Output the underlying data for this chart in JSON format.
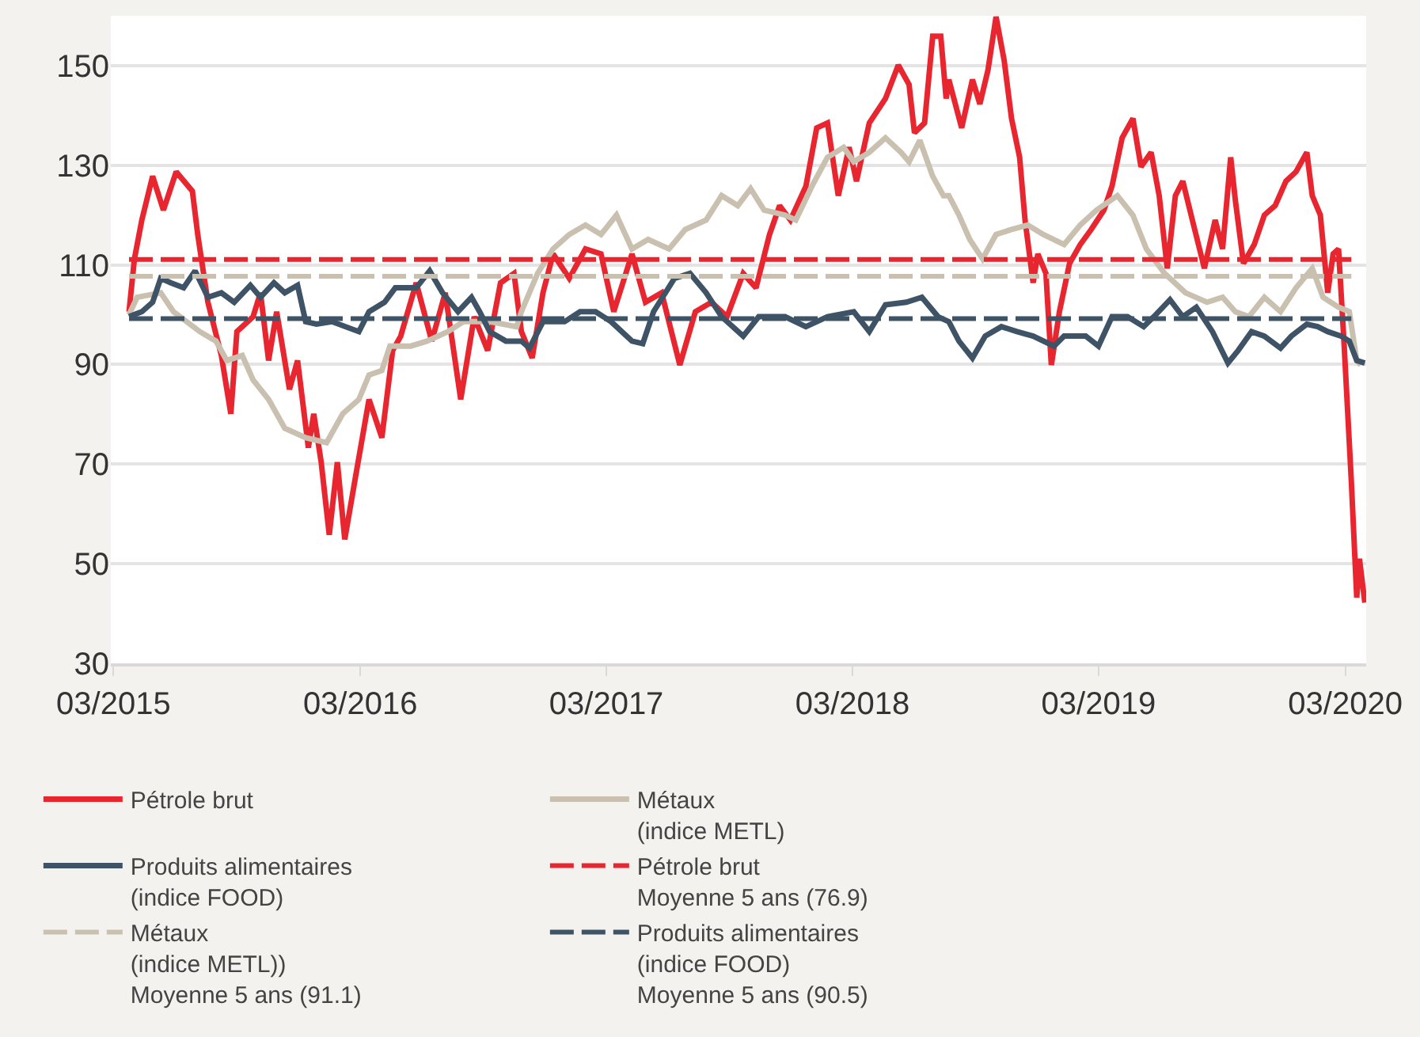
{
  "chart_data": {
    "type": "line",
    "legend": "bottom",
    "grid": "y",
    "xlim": [
      "2015-02-25",
      "2020-04-01"
    ],
    "ylim": [
      30,
      160
    ],
    "xticks": [
      {
        "value": "2015-03",
        "label": "03/2015"
      },
      {
        "value": "2016-03",
        "label": "03/2016"
      },
      {
        "value": "2017-03",
        "label": "03/2017"
      },
      {
        "value": "2018-03",
        "label": "03/2018"
      },
      {
        "value": "2019-03",
        "label": "03/2019"
      },
      {
        "value": "2020-03",
        "label": "03/2020"
      }
    ],
    "yticks": [
      30,
      50,
      70,
      90,
      110,
      130,
      150
    ],
    "series": [
      {
        "name": "Pétrole brut",
        "color": "#e8262f",
        "line_style": "solid",
        "x": [
          "2015-03-24",
          "2015-04-01",
          "2015-04-12",
          "2015-04-28",
          "2015-05-14",
          "2015-06-02",
          "2015-06-26",
          "2015-07-04",
          "2015-07-19",
          "2015-08-08",
          "2015-08-22",
          "2015-08-31",
          "2015-09-24",
          "2015-10-05",
          "2015-10-17",
          "2015-10-29",
          "2015-11-17",
          "2015-11-29",
          "2015-12-15",
          "2015-12-23",
          "2016-01-03",
          "2016-01-15",
          "2016-01-27",
          "2016-02-07",
          "2016-02-23",
          "2016-03-14",
          "2016-04-02",
          "2016-04-18",
          "2016-04-30",
          "2016-05-23",
          "2016-06-15",
          "2016-07-05",
          "2016-07-28",
          "2016-08-17",
          "2016-09-06",
          "2016-09-25",
          "2016-10-15",
          "2016-10-26",
          "2016-11-11",
          "2016-11-27",
          "2016-12-12",
          "2017-01-05",
          "2017-01-29",
          "2017-02-21",
          "2017-03-12",
          "2017-04-08",
          "2017-04-28",
          "2017-05-22",
          "2017-06-18",
          "2017-07-11",
          "2017-08-04",
          "2017-08-27",
          "2017-09-20",
          "2017-10-09",
          "2017-10-29",
          "2017-11-13",
          "2017-11-29",
          "2017-12-22",
          "2018-01-07",
          "2018-01-23",
          "2018-02-08",
          "2018-02-24",
          "2018-03-07",
          "2018-03-26",
          "2018-04-19",
          "2018-05-08",
          "2018-05-24",
          "2018-06-01",
          "2018-06-16",
          "2018-06-28",
          "2018-07-10",
          "2018-07-18",
          "2018-07-22",
          "2018-08-10",
          "2018-08-26",
          "2018-09-06",
          "2018-09-18",
          "2018-09-30",
          "2018-10-12",
          "2018-10-23",
          "2018-11-04",
          "2018-11-12",
          "2018-11-24",
          "2018-12-01",
          "2018-12-13",
          "2018-12-21",
          "2019-01-02",
          "2019-01-17",
          "2019-02-02",
          "2019-02-18",
          "2019-03-09",
          "2019-03-21",
          "2019-04-05",
          "2019-04-21",
          "2019-05-03",
          "2019-05-18",
          "2019-05-30",
          "2019-06-11",
          "2019-06-23",
          "2019-07-04",
          "2019-07-20",
          "2019-08-05",
          "2019-08-21",
          "2019-09-01",
          "2019-09-13",
          "2019-09-20",
          "2019-10-02",
          "2019-10-18",
          "2019-11-02",
          "2019-11-18",
          "2019-12-04",
          "2019-12-19",
          "2020-01-04",
          "2020-01-12",
          "2020-01-24",
          "2020-02-04",
          "2020-02-12",
          "2020-02-20",
          "2020-02-28",
          "2020-03-10",
          "2020-03-18",
          "2020-03-22",
          "2020-03-30"
        ],
        "values": [
          100.6,
          111.2,
          119,
          127.8,
          121,
          128.7,
          124.8,
          116,
          102.5,
          91.8,
          80.1,
          96.6,
          99.6,
          104.4,
          90.8,
          100.6,
          85,
          90.8,
          73.3,
          80.1,
          70.4,
          55.8,
          70.4,
          54.9,
          67.5,
          83,
          75.3,
          92.8,
          95.7,
          106.4,
          94.7,
          104.4,
          83,
          99.6,
          92.8,
          106.4,
          108.3,
          96.6,
          91.3,
          104.4,
          112.2,
          107.3,
          113.2,
          112.2,
          100.6,
          112.2,
          102.5,
          104.4,
          89.9,
          100.6,
          102.5,
          99.6,
          108.3,
          105.4,
          116.1,
          121.9,
          119,
          125.8,
          137.5,
          138.5,
          123.9,
          133.6,
          126.8,
          138.5,
          143.4,
          150.1,
          146.2,
          136.5,
          138.5,
          155.9,
          155.9,
          143.4,
          147.2,
          137.5,
          147.2,
          142.3,
          149.1,
          159.8,
          151.1,
          139.4,
          131.6,
          119,
          106.4,
          112.2,
          108.3,
          89.9,
          100.6,
          110.3,
          114.1,
          117.1,
          121,
          125.8,
          135.5,
          139.4,
          129.7,
          132.6,
          123.9,
          109.3,
          123.9,
          126.8,
          118,
          109.3,
          119,
          113.2,
          131.6,
          122.9,
          110.3,
          114.1,
          120,
          121.9,
          126.8,
          128.7,
          132.6,
          123.9,
          120,
          104.4,
          112.2,
          113.2,
          94.7,
          66.5,
          43.2,
          51,
          42.2
        ]
      },
      {
        "name": "Métaux\n(indice METL)",
        "color": "#c9c0b0",
        "line_style": "solid",
        "x": [
          "2015-03-24",
          "2015-04-05",
          "2015-05-10",
          "2015-05-29",
          "2015-07-07",
          "2015-07-31",
          "2015-08-16",
          "2015-09-08",
          "2015-09-24",
          "2015-10-17",
          "2015-11-10",
          "2015-12-11",
          "2016-01-11",
          "2016-02-04",
          "2016-02-28",
          "2016-03-14",
          "2016-04-02",
          "2016-04-14",
          "2016-05-15",
          "2016-06-08",
          "2016-07-09",
          "2016-08-01",
          "2016-09-09",
          "2016-10-19",
          "2016-10-26",
          "2016-11-19",
          "2016-12-12",
          "2017-01-05",
          "2017-01-29",
          "2017-02-21",
          "2017-03-16",
          "2017-04-08",
          "2017-05-02",
          "2017-06-02",
          "2017-06-26",
          "2017-07-27",
          "2017-08-19",
          "2017-09-12",
          "2017-10-01",
          "2017-10-21",
          "2017-11-21",
          "2017-12-07",
          "2017-12-31",
          "2018-01-23",
          "2018-02-16",
          "2018-03-03",
          "2018-03-26",
          "2018-04-19",
          "2018-05-12",
          "2018-05-24",
          "2018-06-09",
          "2018-06-28",
          "2018-07-14",
          "2018-07-22",
          "2018-08-06",
          "2018-08-22",
          "2018-09-10",
          "2018-09-30",
          "2018-10-23",
          "2018-11-16",
          "2018-12-09",
          "2019-01-09",
          "2019-02-02",
          "2019-02-26",
          "2019-03-29",
          "2019-04-21",
          "2019-05-11",
          "2019-06-07",
          "2019-07-08",
          "2019-08-09",
          "2019-09-01",
          "2019-09-20",
          "2019-10-10",
          "2019-11-02",
          "2019-11-26",
          "2019-12-19",
          "2020-01-12",
          "2020-01-28",
          "2020-02-20",
          "2020-03-07",
          "2020-03-18",
          "2020-03-24"
        ],
        "values": [
          100,
          103.5,
          104.4,
          100.6,
          96.6,
          94.7,
          90.8,
          91.8,
          86.9,
          83,
          77.2,
          75.3,
          74.3,
          80.1,
          83,
          87.9,
          88.8,
          93.7,
          93.7,
          94.7,
          96.6,
          98.6,
          98.6,
          97.6,
          100.6,
          108.3,
          113.2,
          116.1,
          118,
          116.1,
          120,
          113.2,
          115.1,
          113.2,
          117.1,
          119,
          123.9,
          121.9,
          125.3,
          121,
          120,
          119,
          125.8,
          131.6,
          133.6,
          130.7,
          132.6,
          135.5,
          132.6,
          130.7,
          135,
          127.8,
          123.9,
          123.9,
          120,
          115.1,
          111.2,
          116.1,
          117.1,
          118,
          116.1,
          114.1,
          118,
          121,
          123.9,
          120,
          113.2,
          108.3,
          104.4,
          102.5,
          103.5,
          100.6,
          99.6,
          103.5,
          100.6,
          105.4,
          109.3,
          103.5,
          101.5,
          100.6,
          90.8,
          89.9
        ]
      },
      {
        "name": "Produits alimentaires\n(indice FOOD)",
        "color": "#3f5366",
        "line_style": "solid",
        "x": [
          "2015-03-24",
          "2015-04-12",
          "2015-04-28",
          "2015-05-10",
          "2015-05-25",
          "2015-06-13",
          "2015-06-30",
          "2015-07-19",
          "2015-08-08",
          "2015-08-27",
          "2015-09-20",
          "2015-10-05",
          "2015-10-25",
          "2015-11-10",
          "2015-11-29",
          "2015-12-11",
          "2015-12-27",
          "2016-01-19",
          "2016-02-28",
          "2016-03-14",
          "2016-04-06",
          "2016-04-22",
          "2016-05-23",
          "2016-06-12",
          "2016-07-01",
          "2016-07-24",
          "2016-08-13",
          "2016-08-25",
          "2016-09-09",
          "2016-10-03",
          "2016-10-26",
          "2016-11-07",
          "2016-11-27",
          "2016-12-29",
          "2017-01-21",
          "2017-02-13",
          "2017-03-08",
          "2017-04-08",
          "2017-04-24",
          "2017-05-10",
          "2017-06-10",
          "2017-07-03",
          "2017-07-27",
          "2017-08-19",
          "2017-09-20",
          "2017-10-13",
          "2017-11-21",
          "2017-12-22",
          "2018-01-23",
          "2018-03-03",
          "2018-03-26",
          "2018-04-19",
          "2018-05-20",
          "2018-06-12",
          "2018-07-06",
          "2018-07-22",
          "2018-08-06",
          "2018-08-26",
          "2018-09-14",
          "2018-10-08",
          "2018-10-31",
          "2018-11-24",
          "2018-12-25",
          "2019-01-09",
          "2019-02-10",
          "2019-03-01",
          "2019-03-21",
          "2019-04-13",
          "2019-05-07",
          "2019-05-22",
          "2019-06-15",
          "2019-07-04",
          "2019-07-24",
          "2019-08-17",
          "2019-09-09",
          "2019-09-24",
          "2019-10-14",
          "2019-11-02",
          "2019-11-26",
          "2019-12-12",
          "2020-01-04",
          "2020-01-20",
          "2020-02-04",
          "2020-02-24",
          "2020-03-07",
          "2020-03-18",
          "2020-03-30"
        ],
        "values": [
          99.6,
          100.6,
          102.5,
          107.3,
          106.4,
          105.4,
          108.8,
          103.5,
          104.4,
          102.5,
          105.9,
          103.5,
          106.4,
          104.4,
          105.9,
          98.6,
          98.1,
          98.6,
          96.6,
          100.6,
          102.5,
          105.4,
          105.4,
          108.8,
          104.4,
          100.6,
          103.5,
          100.6,
          96.6,
          94.7,
          94.7,
          93.3,
          98.6,
          98.6,
          100.6,
          100.6,
          98.6,
          94.7,
          94.2,
          100.6,
          107.3,
          108.3,
          104.4,
          99.6,
          95.7,
          99.6,
          99.6,
          97.6,
          99.6,
          100.6,
          96.6,
          102,
          102.5,
          103.5,
          99.6,
          98.6,
          94.7,
          91.3,
          95.7,
          97.6,
          96.6,
          95.7,
          93.7,
          95.7,
          95.7,
          93.7,
          99.6,
          99.6,
          97.6,
          99.6,
          103,
          99.6,
          101.5,
          96.6,
          90.3,
          92.8,
          96.6,
          95.7,
          93.3,
          95.7,
          98.1,
          97.6,
          96.6,
          95.7,
          94.7,
          90.8,
          90.3
        ]
      },
      {
        "name": "Pétrole brut\nMoyenne 5 ans (76.9)",
        "color": "#e8262f",
        "line_style": "dashed",
        "x": [
          "2015-03-24",
          "2020-03-10"
        ],
        "values": [
          111.1,
          111.1
        ]
      },
      {
        "name": "Métaux\n(indice METL))\nMoyenne 5 ans (91.1)",
        "color": "#c9c0b0",
        "line_style": "dashed",
        "x": [
          "2015-03-24",
          "2020-03-10"
        ],
        "values": [
          107.7,
          107.7
        ]
      },
      {
        "name": "Produits alimentaires\n(indice FOOD)\nMoyenne 5 ans (90.5)",
        "color": "#3f5366",
        "line_style": "dashed",
        "x": [
          "2015-03-24",
          "2020-03-10"
        ],
        "values": [
          99.2,
          99.2
        ]
      }
    ]
  }
}
